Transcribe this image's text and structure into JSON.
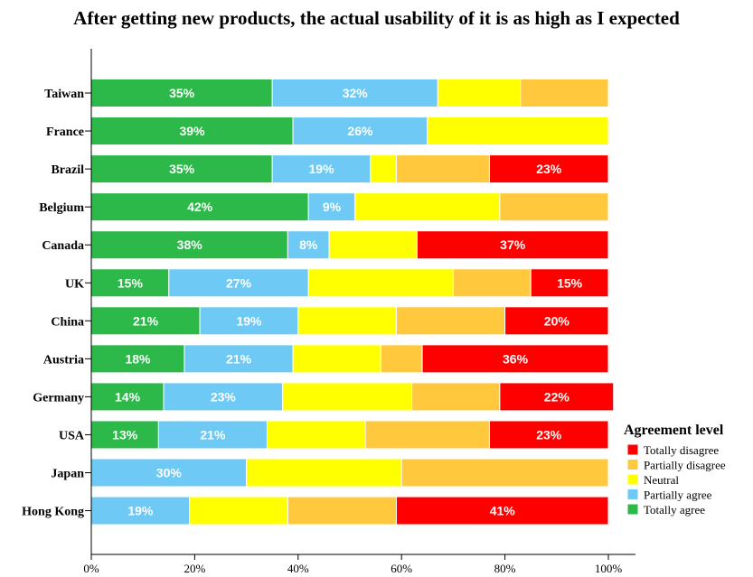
{
  "chart_data": {
    "type": "bar",
    "orientation": "horizontal",
    "stacked": true,
    "title": "After getting new products, the actual usability of it is as high as I expected",
    "categories": [
      "Taiwan",
      "France",
      "Brazil",
      "Belgium",
      "Canada",
      "UK",
      "China",
      "Austria",
      "Germany",
      "USA",
      "Japan",
      "Hong Kong"
    ],
    "series": [
      {
        "name": "Totally agree",
        "color": "#2db84a",
        "values": [
          35,
          39,
          35,
          42,
          38,
          15,
          21,
          18,
          14,
          13,
          0,
          0
        ],
        "labels": [
          "35%",
          "39%",
          "35%",
          "42%",
          "38%",
          "15%",
          "21%",
          "18%",
          "14%",
          "13%",
          "",
          ""
        ]
      },
      {
        "name": "Partially agree",
        "color": "#6ec9f5",
        "values": [
          32,
          26,
          19,
          9,
          8,
          27,
          19,
          21,
          23,
          21,
          30,
          19
        ],
        "labels": [
          "32%",
          "26%",
          "19%",
          "9%",
          "8%",
          "27%",
          "19%",
          "21%",
          "23%",
          "21%",
          "30%",
          "19%"
        ]
      },
      {
        "name": "Neutral",
        "color": "#ffff00",
        "values": [
          16,
          35,
          5,
          28,
          17,
          28,
          19,
          17,
          25,
          19,
          30,
          19
        ],
        "labels": [
          "",
          "",
          "",
          "",
          "",
          "",
          "",
          "",
          "",
          "",
          "",
          ""
        ]
      },
      {
        "name": "Partially disagree",
        "color": "#ffc83d",
        "values": [
          17,
          0,
          18,
          21,
          0,
          15,
          21,
          8,
          17,
          24,
          40,
          21
        ],
        "labels": [
          "",
          "",
          "",
          "",
          "",
          "",
          "",
          "",
          "",
          "",
          "",
          ""
        ]
      },
      {
        "name": "Totally disagree",
        "color": "#ff0000",
        "values": [
          0,
          0,
          23,
          0,
          37,
          15,
          20,
          36,
          22,
          23,
          0,
          41
        ],
        "labels": [
          "",
          "",
          "23%",
          "",
          "37%",
          "15%",
          "20%",
          "36%",
          "22%",
          "23%",
          "",
          "41%"
        ]
      }
    ],
    "xlim": [
      0,
      100
    ],
    "xticks": [
      "0%",
      "20%",
      "40%",
      "60%",
      "80%",
      "100%"
    ],
    "legend": {
      "title": "Agreement level",
      "position": "right",
      "order": [
        "Totally disagree",
        "Partially disagree",
        "Neutral",
        "Partially agree",
        "Totally agree"
      ]
    },
    "grid": false
  }
}
